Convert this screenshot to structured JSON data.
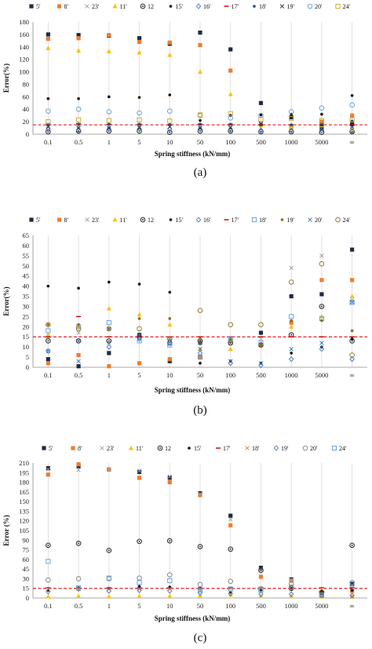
{
  "chart_data": [
    {
      "type": "scatter",
      "caption": "(a)",
      "xlabel": "Spring stiffness (kN/mm)",
      "ylabel": "Error(%)",
      "categories": [
        "0.1",
        "0.5",
        "1",
        "5",
        "10",
        "50",
        "100",
        "500",
        "1000",
        "5000",
        "∞"
      ],
      "ylim": [
        0,
        180
      ],
      "yticks": [
        0,
        20,
        40,
        60,
        80,
        100,
        120,
        140,
        160,
        180
      ],
      "threshold": 15,
      "grid": "vertical",
      "legend": "top",
      "series": [
        {
          "name": "5'",
          "marker": "square",
          "color": "#1f2a44",
          "values": [
            160,
            159,
            158,
            154,
            145,
            163,
            136,
            50,
            27,
            10,
            16
          ]
        },
        {
          "name": "8'",
          "marker": "square",
          "color": "#ed7d31",
          "values": [
            153,
            154,
            159,
            148,
            147,
            143,
            102,
            16,
            11,
            20,
            30
          ]
        },
        {
          "name": "23'",
          "marker": "x",
          "color": "#9e9e9e",
          "values": [
            13,
            12,
            13,
            14,
            12,
            12,
            10,
            10,
            12,
            15,
            12
          ]
        },
        {
          "name": "11'",
          "marker": "triangle",
          "color": "#ffc000",
          "values": [
            138,
            134,
            133,
            131,
            127,
            100,
            64,
            14,
            11,
            14,
            9
          ]
        },
        {
          "name": "12",
          "marker": "ringdot",
          "color": "#333333",
          "values": [
            4,
            5,
            5,
            5,
            3,
            5,
            5,
            4,
            4,
            3,
            4
          ]
        },
        {
          "name": "15'",
          "marker": "dot",
          "color": "#111111",
          "values": [
            57,
            57,
            60,
            59,
            63,
            22,
            30,
            31,
            32,
            32,
            62
          ]
        },
        {
          "name": "16'",
          "marker": "diamond",
          "color": "#4472c4",
          "values": [
            8,
            6,
            8,
            8,
            8,
            8,
            7,
            6,
            6,
            6,
            5
          ]
        },
        {
          "name": "17'",
          "marker": "dash",
          "color": "#c00000",
          "values": [
            17,
            17,
            16,
            16,
            15,
            16,
            16,
            15,
            15,
            15,
            15
          ]
        },
        {
          "name": "18'",
          "marker": "dot",
          "color": "#1f4e79",
          "values": [
            15,
            16,
            16,
            16,
            16,
            16,
            16,
            15,
            15,
            15,
            21
          ]
        },
        {
          "name": "19'",
          "marker": "x",
          "color": "#1f2a44",
          "values": [
            12,
            10,
            10,
            11,
            12,
            10,
            11,
            17,
            27,
            15,
            12
          ]
        },
        {
          "name": "20'",
          "marker": "circle",
          "color": "#5b9bd5",
          "values": [
            37,
            40,
            36,
            34,
            37,
            30,
            26,
            30,
            36,
            42,
            47
          ]
        },
        {
          "name": "24'",
          "marker": "square-open",
          "color": "#c9a227",
          "values": [
            20,
            23,
            22,
            23,
            21,
            31,
            33,
            24,
            25,
            22,
            23
          ]
        }
      ]
    },
    {
      "type": "scatter",
      "caption": "(b)",
      "xlabel": "Spring stiffness (kN/mm)",
      "ylabel": "Error(%)",
      "categories": [
        "0.1",
        "0.5",
        "1",
        "5",
        "10",
        "50",
        "100",
        "500",
        "1000",
        "5000",
        "∞"
      ],
      "ylim": [
        0,
        65
      ],
      "yticks": [
        0,
        5,
        10,
        15,
        20,
        25,
        30,
        35,
        40,
        45,
        50,
        55,
        60,
        65
      ],
      "threshold": 15,
      "grid": "vertical",
      "legend": "top",
      "series": [
        {
          "name": "5'",
          "marker": "square",
          "color": "#1f2a44",
          "values": [
            4,
            0.5,
            7,
            16,
            3,
            12,
            13,
            17,
            35,
            36,
            58
          ]
        },
        {
          "name": "8'",
          "marker": "square",
          "color": "#ed7d31",
          "values": [
            2,
            6,
            0.5,
            2,
            4,
            5,
            13,
            11,
            22,
            43,
            43
          ]
        },
        {
          "name": "23'",
          "marker": "x",
          "color": "#9e9e9e",
          "values": [
            15,
            17,
            12,
            14,
            13,
            12,
            12,
            14,
            49,
            55,
            33
          ]
        },
        {
          "name": "11'",
          "marker": "triangle",
          "color": "#ffc000",
          "values": [
            16,
            20,
            29,
            26,
            21,
            9,
            9,
            11,
            20,
            25,
            35
          ]
        },
        {
          "name": "12",
          "marker": "ringdot",
          "color": "#333333",
          "values": [
            13,
            13,
            13,
            15,
            12,
            13,
            12,
            11,
            16,
            30,
            13
          ]
        },
        {
          "name": "15'",
          "marker": "dot",
          "color": "#111111",
          "values": [
            40,
            39,
            42,
            41,
            37,
            2,
            3,
            2,
            7,
            10,
            14
          ]
        },
        {
          "name": "16'",
          "marker": "diamond",
          "color": "#4472c4",
          "values": [
            8,
            13,
            10,
            14,
            12,
            7,
            2,
            1,
            4,
            9,
            4
          ]
        },
        {
          "name": "17'",
          "marker": "dash",
          "color": "#c00000",
          "values": [
            15,
            25,
            15,
            15,
            15,
            15,
            15,
            15,
            15,
            15,
            15
          ]
        },
        {
          "name": "18'",
          "marker": "square-open",
          "color": "#5b9bd5",
          "values": [
            18,
            20,
            22,
            13,
            11,
            5,
            14,
            12,
            25,
            24,
            32
          ]
        },
        {
          "name": "19'",
          "marker": "dot",
          "color": "#8c6d1f",
          "values": [
            21,
            21,
            19,
            24,
            24,
            14,
            14,
            11,
            23,
            23,
            18
          ]
        },
        {
          "name": "20'",
          "marker": "x",
          "color": "#2e75b6",
          "values": [
            8,
            3,
            19,
            16,
            14,
            9,
            3,
            2,
            9,
            12,
            32
          ]
        },
        {
          "name": "24'",
          "marker": "circle",
          "color": "#8c6d1f",
          "values": [
            21,
            19,
            19,
            19,
            14,
            28,
            21,
            21,
            42,
            51,
            6
          ]
        }
      ]
    },
    {
      "type": "scatter",
      "caption": "(c)",
      "xlabel": "Spring stiffness (kN/mm)",
      "ylabel": "Error (%)",
      "categories": [
        "0.1",
        "0.5",
        "1",
        "5",
        "10",
        "50",
        "100",
        "500",
        "1000",
        "5000",
        "∞"
      ],
      "ylim": [
        0,
        210
      ],
      "yticks": [
        0,
        15,
        30,
        45,
        60,
        75,
        90,
        105,
        120,
        135,
        150,
        165,
        180,
        195,
        210
      ],
      "threshold": 15,
      "grid": "vertical",
      "legend": "top",
      "series": [
        {
          "name": "5'",
          "marker": "square",
          "color": "#1f2a44",
          "values": [
            202,
            205,
            200,
            196,
            187,
            163,
            128,
            47,
            29,
            8,
            22
          ]
        },
        {
          "name": "8'",
          "marker": "square",
          "color": "#ed7d31",
          "values": [
            192,
            208,
            200,
            187,
            180,
            160,
            113,
            33,
            27,
            4,
            11
          ]
        },
        {
          "name": "23'",
          "marker": "x",
          "color": "#9e9e9e",
          "values": [
            200,
            199,
            200,
            198,
            189,
            162,
            122,
            44,
            28,
            8,
            20
          ]
        },
        {
          "name": "11'",
          "marker": "triangle",
          "color": "#ffc000",
          "values": [
            2,
            3,
            2,
            3,
            3,
            4,
            5,
            3,
            3,
            2,
            2
          ]
        },
        {
          "name": "12",
          "marker": "ringdot",
          "color": "#333333",
          "values": [
            82,
            85,
            74,
            88,
            89,
            80,
            76,
            43,
            15,
            9,
            82
          ]
        },
        {
          "name": "15'",
          "marker": "dot",
          "color": "#111111",
          "values": [
            12,
            16,
            15,
            18,
            17,
            15,
            9,
            12,
            15,
            10,
            12
          ]
        },
        {
          "name": "17'",
          "marker": "dash",
          "color": "#c00000",
          "values": [
            16,
            16,
            16,
            16,
            16,
            16,
            16,
            16,
            16,
            16,
            16
          ]
        },
        {
          "name": "18'",
          "marker": "x",
          "color": "#ed7d31",
          "values": [
            14,
            14,
            14,
            14,
            14,
            14,
            15,
            15,
            18,
            14,
            2
          ]
        },
        {
          "name": "19'",
          "marker": "diamond",
          "color": "#4472c4",
          "values": [
            10,
            14,
            11,
            12,
            11,
            8,
            7,
            6,
            6,
            4,
            4
          ]
        },
        {
          "name": "20'",
          "marker": "circle",
          "color": "#7f7f7f",
          "values": [
            28,
            30,
            30,
            31,
            36,
            21,
            26,
            14,
            22,
            6,
            24
          ]
        },
        {
          "name": "24'",
          "marker": "square-open",
          "color": "#5b9bd5",
          "values": [
            57,
            16,
            31,
            24,
            27,
            12,
            14,
            12,
            17,
            4,
            22
          ]
        }
      ]
    }
  ]
}
